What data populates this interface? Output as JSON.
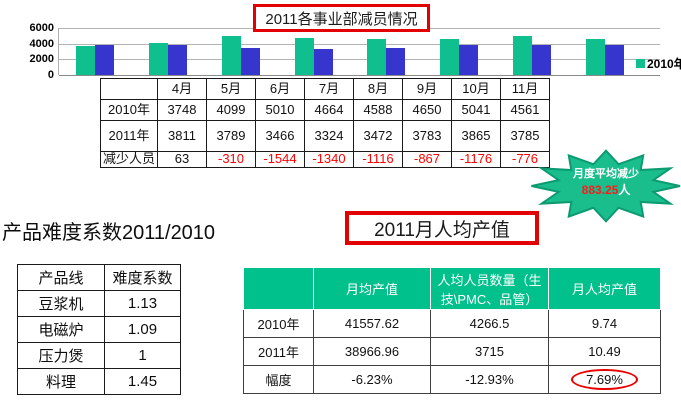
{
  "colors": {
    "bar_2010": "#0fbf8d",
    "bar_2011": "#3636ce",
    "table_header_peach": "#f8cbad",
    "left_header_teal": "#31859c",
    "right_header_green": "#00c08c",
    "starburst_fill": "#1abd8c",
    "starburst_stroke": "#0b9a71",
    "highlight_red": "#e20000",
    "negative_text_red": "#ff0000"
  },
  "chart": {
    "legend_label": "2010年"
  },
  "chart_data": {
    "type": "bar",
    "title": "2011各事业部减员情况",
    "categories": [
      "4月",
      "5月",
      "6月",
      "7月",
      "8月",
      "9月",
      "10月",
      "11月"
    ],
    "series": [
      {
        "name": "2010年",
        "color": "#0fbf8d",
        "values": [
          3748,
          4099,
          5010,
          4664,
          4588,
          4650,
          5041,
          4561
        ]
      },
      {
        "name": "2011年",
        "color": "#3636ce",
        "values": [
          3811,
          3789,
          3466,
          3324,
          3472,
          3783,
          3865,
          3785
        ]
      }
    ],
    "xlabel": "",
    "ylabel": "",
    "ylim": [
      0,
      6000
    ],
    "y_ticks": [
      0,
      2000,
      4000,
      6000
    ],
    "grid": true,
    "legend_position": "right",
    "legend_visible_entries": [
      "2010年"
    ]
  },
  "reduction_table": {
    "columns": [
      "4月",
      "5月",
      "6月",
      "7月",
      "8月",
      "9月",
      "10月",
      "11月"
    ],
    "row_headers": [
      "2010年",
      "2011年",
      "减少人员"
    ],
    "values_2010": [
      "3748",
      "4099",
      "5010",
      "4664",
      "4588",
      "4650",
      "5041",
      "4561"
    ],
    "values_2011": [
      "3811",
      "3789",
      "3466",
      "3324",
      "3472",
      "3783",
      "3865",
      "3785"
    ],
    "values_diff": [
      "63",
      "-310",
      "-1544",
      "-1340",
      "-1116",
      "-867",
      "-1176",
      "-776"
    ]
  },
  "starburst": {
    "line1": "月度平均减少",
    "value": "883.25",
    "unit": "人"
  },
  "difficulty": {
    "heading": "产品难度系数2011/2010",
    "headers": [
      "产品线",
      "难度系数"
    ],
    "rows": [
      [
        "豆浆机",
        "1.13"
      ],
      [
        "电磁炉",
        "1.09"
      ],
      [
        "压力煲",
        "1"
      ],
      [
        "料理",
        "1.45"
      ]
    ]
  },
  "output": {
    "title": "2011月人均产值",
    "headers": [
      "",
      "月均产值",
      "人均人员数量（生技\\PMC、品管）",
      "月人均产值"
    ],
    "rows": [
      [
        "2010年",
        "41557.62",
        "4266.5",
        "9.74"
      ],
      [
        "2011年",
        "38966.96",
        "3715",
        "10.49"
      ],
      [
        "幅度",
        "-6.23%",
        "-12.93%",
        "7.69%"
      ]
    ],
    "circled_value": "7.69%"
  }
}
